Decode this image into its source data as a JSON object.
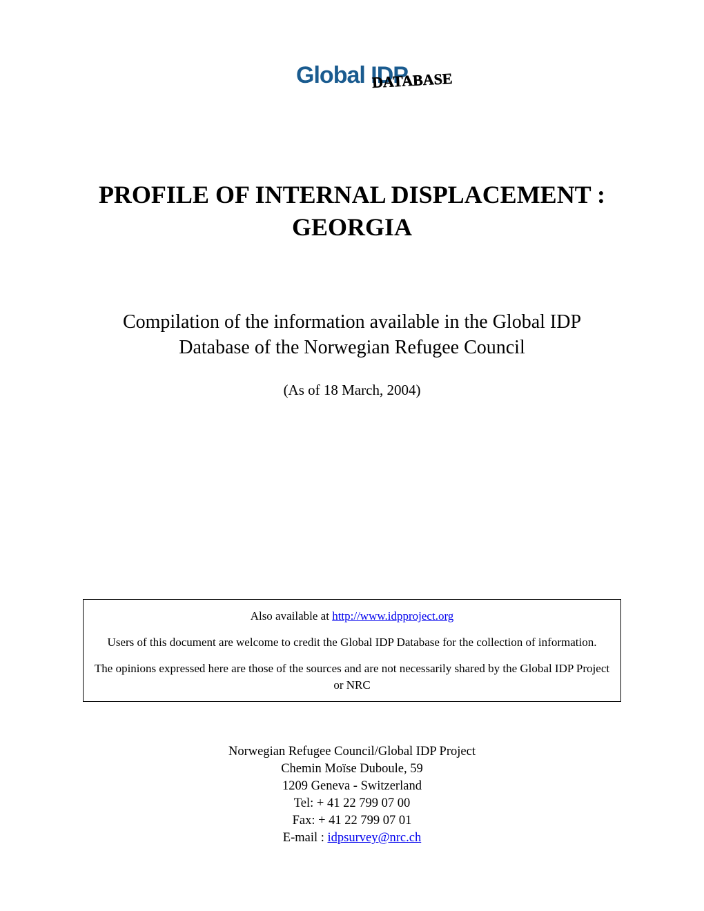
{
  "logo": {
    "text_global": "Global",
    "text_idp": " IDP",
    "text_database": "DATABASE"
  },
  "title": {
    "line1": "PROFILE OF INTERNAL DISPLACEMENT :",
    "line2": "GEORGIA"
  },
  "subtitle": {
    "line1": "Compilation of the information available in the Global IDP",
    "line2": "Database of the Norwegian Refugee Council"
  },
  "date_text": "(As of 18 March, 2004)",
  "info_box": {
    "available_prefix": "Also available at ",
    "available_link": "http://www.idpproject.org",
    "credit_text": "Users of this document are welcome to credit the Global IDP Database for the collection of information.",
    "opinion_text": "The opinions expressed here are those of the sources and are not necessarily shared by the Global IDP Project or NRC"
  },
  "contact": {
    "org": "Norwegian Refugee Council/Global IDP Project",
    "address1": "Chemin Moïse Duboule, 59",
    "address2": "1209 Geneva - Switzerland",
    "tel": "Tel: + 41 22 799 07 00",
    "fax": "Fax: + 41 22 799 07 01",
    "email_prefix": "E-mail : ",
    "email_link": "idpsurvey@nrc.ch"
  },
  "colors": {
    "logo_blue": "#1a5b8f",
    "link_blue": "#0000ee",
    "text_black": "#000000",
    "background": "#ffffff"
  }
}
